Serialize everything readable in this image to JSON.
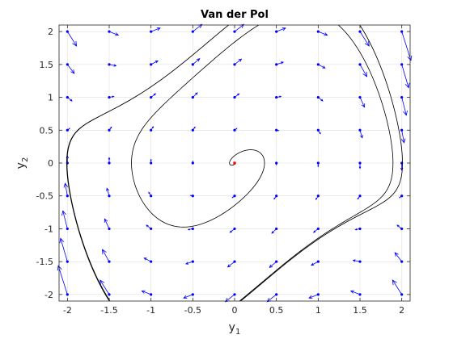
{
  "chart_data": {
    "type": "vector-field-with-trajectory",
    "title": "Van der Pol",
    "xlabel": {
      "base": "y",
      "sub": "1"
    },
    "ylabel": {
      "base": "y",
      "sub": "2"
    },
    "xlim": [
      -2.1,
      2.1
    ],
    "ylim": [
      -2.1,
      2.1
    ],
    "xticks": [
      -2,
      -1.5,
      -1,
      -0.5,
      0,
      0.5,
      1,
      1.5,
      2
    ],
    "yticks": [
      -2,
      -1.5,
      -1,
      -0.5,
      0,
      0.5,
      1,
      1.5,
      2
    ],
    "grid": true,
    "box": true,
    "mu": 1,
    "quiver_grid": {
      "min": -2,
      "max": 2,
      "step": 0.5
    },
    "trajectory_start": [
      0.01,
      0
    ],
    "equilibrium": [
      0,
      0
    ],
    "colors": {
      "vectors": "#0000ff",
      "trajectory": "#000000",
      "equilibrium": "#ff0000",
      "grid": "#dfdfdf",
      "axes": "#262626"
    }
  }
}
